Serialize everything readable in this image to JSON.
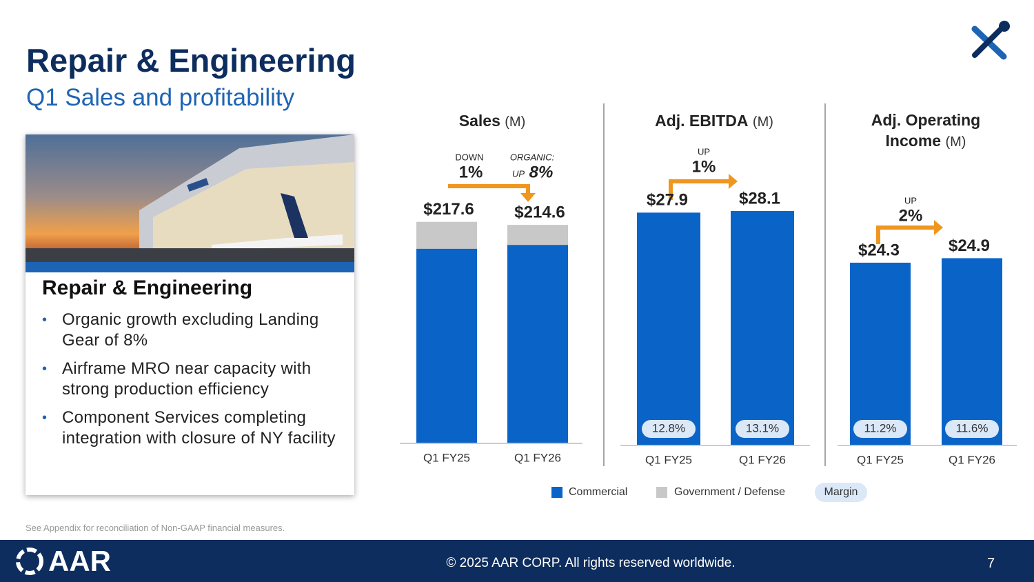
{
  "header": {
    "title": "Repair & Engineering",
    "subtitle": "Q1 Sales and profitability"
  },
  "card": {
    "heading": "Repair & Engineering",
    "bullets": [
      "Organic growth excluding Landing Gear of 8%",
      "Airframe MRO near capacity with strong production efficiency",
      "Component Services completing integration with closure of NY facility"
    ]
  },
  "chart_data": [
    {
      "type": "bar",
      "stacked": true,
      "title": "Sales",
      "unit": "(M)",
      "categories": [
        "Q1 FY25",
        "Q1 FY26"
      ],
      "series": [
        {
          "name": "Commercial",
          "color": "#0a64c8",
          "values": [
            191.1,
            194.9
          ]
        },
        {
          "name": "Government / Defense",
          "color": "#c8c8c8",
          "values": [
            26.5,
            19.7
          ]
        }
      ],
      "totals": [
        217.6,
        214.6
      ],
      "total_labels": [
        "$217.6",
        "$214.6"
      ],
      "ylim": [
        0,
        250
      ],
      "annotations": {
        "change_label": "DOWN",
        "change": "1%",
        "organic_label": "ORGANIC:",
        "organic_dir": "UP",
        "organic": "8%"
      }
    },
    {
      "type": "bar",
      "title": "Adj. EBITDA",
      "unit": "(M)",
      "categories": [
        "Q1 FY25",
        "Q1 FY26"
      ],
      "values": [
        27.9,
        28.1
      ],
      "value_labels": [
        "$27.9",
        "$28.1"
      ],
      "color": "#0a64c8",
      "margins": [
        12.8,
        13.1
      ],
      "margin_labels": [
        "12.8%",
        "13.1%"
      ],
      "ylim": [
        0,
        30
      ],
      "annotations": {
        "direction": "UP",
        "change": "1%"
      }
    },
    {
      "type": "bar",
      "title": "Adj. Operating Income",
      "unit": "(M)",
      "categories": [
        "Q1 FY25",
        "Q1 FY26"
      ],
      "values": [
        24.3,
        24.9
      ],
      "value_labels": [
        "$24.3",
        "$24.9"
      ],
      "color": "#0a64c8",
      "margins": [
        11.2,
        11.6
      ],
      "margin_labels": [
        "11.2%",
        "11.6%"
      ],
      "ylim": [
        0,
        30
      ],
      "annotations": {
        "direction": "UP",
        "change": "2%"
      }
    }
  ],
  "legend": {
    "margin": "Margin",
    "margin_color": "#dbe8f7"
  },
  "footnote": "See Appendix for reconciliation of Non-GAAP financial measures.",
  "footer": {
    "logo": "AAR",
    "copyright": "© 2025 AAR CORP. All rights reserved worldwide.",
    "page": 7
  }
}
